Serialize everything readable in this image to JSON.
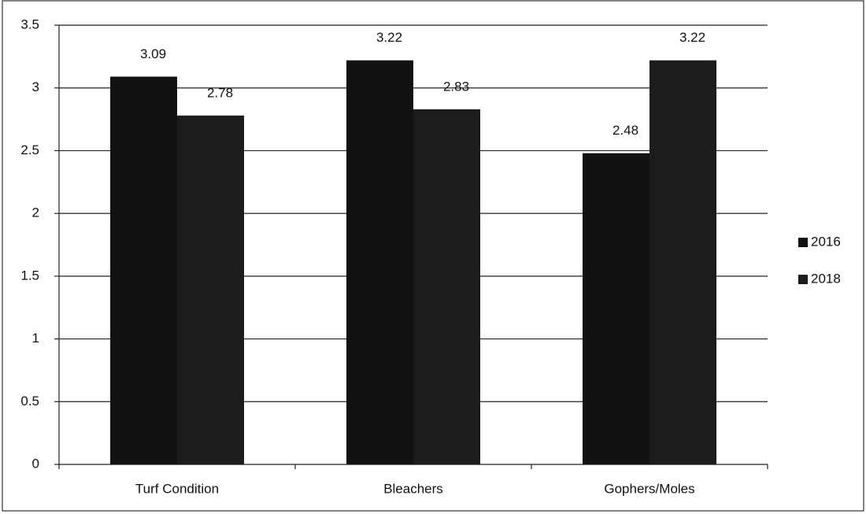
{
  "chart_data": {
    "type": "bar",
    "categories": [
      "Turf Condition",
      "Bleachers",
      "Gophers/Moles"
    ],
    "series": [
      {
        "name": "2016",
        "color": "#121212",
        "values": [
          3.09,
          3.22,
          2.48
        ]
      },
      {
        "name": "2018",
        "color": "#1c1c1c",
        "values": [
          2.78,
          2.83,
          3.22
        ]
      }
    ],
    "ylim": [
      0,
      3.5
    ],
    "yticks": [
      0,
      0.5,
      1,
      1.5,
      2,
      2.5,
      3,
      3.5
    ],
    "grid": true,
    "legend": "right"
  }
}
